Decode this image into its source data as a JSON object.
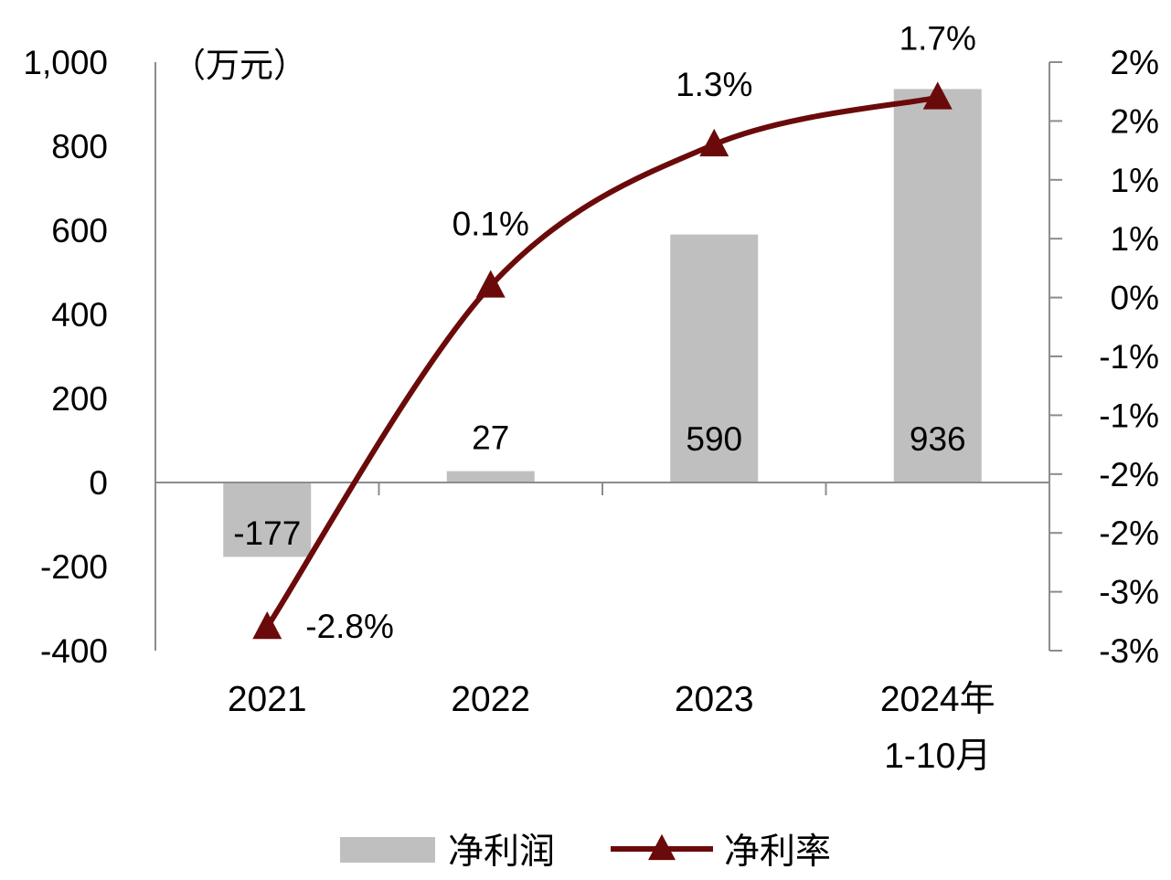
{
  "chart_data": {
    "type": "bar",
    "unit_label": "（万元）",
    "categories": [
      "2021",
      "2022",
      "2023",
      "2024年\n1-10月"
    ],
    "left_axis": {
      "ticks": [
        "1,000",
        "800",
        "600",
        "400",
        "200",
        "0",
        "-200",
        "-400"
      ],
      "tick_values": [
        1000,
        800,
        600,
        400,
        200,
        0,
        -200,
        -400
      ],
      "ylim": [
        -400,
        1000
      ]
    },
    "right_axis": {
      "ticks": [
        "2%",
        "2%",
        "1%",
        "1%",
        "0%",
        "-1%",
        "-1%",
        "-2%",
        "-2%",
        "-3%",
        "-3%"
      ],
      "ylim": [
        -3.0,
        2.0
      ]
    },
    "series": [
      {
        "name": "净利润",
        "type": "bar",
        "axis": "left",
        "values": [
          -177,
          27,
          590,
          936
        ],
        "labels": [
          "-177",
          "27",
          "590",
          "936"
        ],
        "color": "#bfbfbf"
      },
      {
        "name": "净利率",
        "type": "line",
        "axis": "right",
        "values": [
          -2.8,
          0.1,
          1.3,
          1.7
        ],
        "labels": [
          "-2.8%",
          "0.1%",
          "1.3%",
          "1.7%"
        ],
        "color": "#6b0a0a",
        "marker": "triangle"
      }
    ],
    "legend": {
      "position": "bottom"
    }
  }
}
